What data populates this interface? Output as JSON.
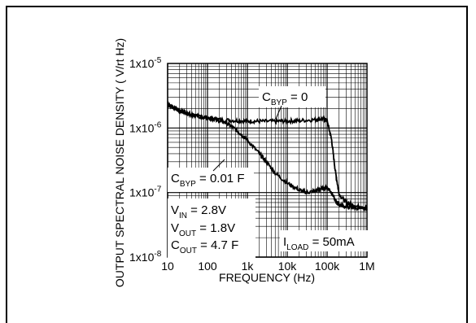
{
  "chart_data": {
    "type": "line",
    "ylabel": "OUTPUT SPECTRAL NOISE DENSITY ( V/rt Hz)",
    "xlabel": "FREQUENCY (Hz)",
    "x_scale": "log",
    "y_scale": "log",
    "xlim": [
      10,
      1000000
    ],
    "ylim": [
      1e-08,
      1e-05
    ],
    "x_ticks": [
      {
        "value": 10,
        "label": "10"
      },
      {
        "value": 100,
        "label": "100"
      },
      {
        "value": 1000,
        "label": "1k"
      },
      {
        "value": 10000,
        "label": "10k"
      },
      {
        "value": 100000,
        "label": "100k"
      },
      {
        "value": 1000000,
        "label": "1M"
      }
    ],
    "y_ticks": [
      {
        "value": 1e-05,
        "base": "1x10",
        "exp": "-5"
      },
      {
        "value": 1e-06,
        "base": "1x10",
        "exp": "-6"
      },
      {
        "value": 1e-07,
        "base": "1x10",
        "exp": "-7"
      },
      {
        "value": 1e-08,
        "base": "1x10",
        "exp": "-8"
      }
    ],
    "grid": true,
    "series": [
      {
        "name": "C_BYP = 0",
        "x": [
          10,
          15,
          20,
          30,
          50,
          100,
          200,
          500,
          1000,
          2000,
          5000,
          10000,
          20000,
          50000,
          80000,
          100000,
          130000,
          160000,
          200000,
          300000,
          500000,
          1000000
        ],
        "y": [
          2.3e-06,
          2.05e-06,
          1.85e-06,
          1.7e-06,
          1.55e-06,
          1.45e-06,
          1.35e-06,
          1.3e-06,
          1.28e-06,
          1.27e-06,
          1.27e-06,
          1.28e-06,
          1.3e-06,
          1.35e-06,
          1.4e-06,
          1.3e-06,
          6.5e-07,
          2.2e-07,
          9.5e-08,
          7e-08,
          6.2e-08,
          5.8e-08
        ]
      },
      {
        "name": "C_BYP = 0.01 F",
        "x": [
          10,
          15,
          20,
          30,
          50,
          100,
          200,
          300,
          500,
          700,
          1000,
          2000,
          3000,
          5000,
          10000,
          20000,
          30000,
          50000,
          70000,
          100000,
          130000,
          160000,
          200000,
          300000,
          500000,
          1000000
        ],
        "y": [
          2.3e-06,
          2.05e-06,
          1.85e-06,
          1.7e-06,
          1.55e-06,
          1.45e-06,
          1.3e-06,
          1.2e-06,
          9.5e-07,
          8e-07,
          6.5e-07,
          4e-07,
          3e-07,
          2e-07,
          1.4e-07,
          1.1e-07,
          1e-07,
          1.05e-07,
          1.15e-07,
          1.2e-07,
          1e-07,
          7.5e-08,
          6.5e-08,
          6e-08,
          5.8e-08,
          5.6e-08
        ]
      }
    ],
    "annotations": {
      "cbyp0": {
        "main": "C",
        "sub": "BYP",
        "rest": " = 0"
      },
      "cbyp001": {
        "main": "C",
        "sub": "BYP",
        "rest": " = 0.01  F"
      },
      "vin": {
        "main": "V",
        "sub": "IN",
        "rest": " = 2.8V"
      },
      "vout": {
        "main": "V",
        "sub": "OUT",
        "rest": " = 1.8V"
      },
      "cout": {
        "main": "C",
        "sub": "OUT",
        "rest": " = 4.7  F"
      },
      "iload": {
        "main": "I",
        "sub": "LOAD",
        "rest": " = 50mA"
      }
    }
  }
}
